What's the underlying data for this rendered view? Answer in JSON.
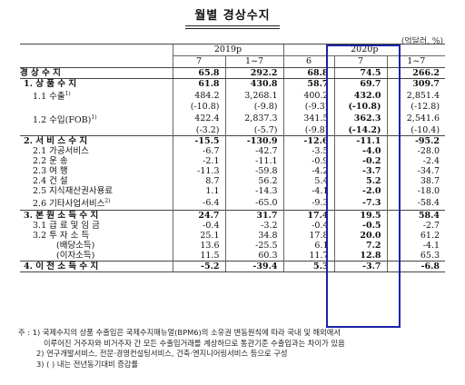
{
  "title": "월별 경상수지",
  "unit": "(억달러, %)",
  "headers": {
    "year1": "2019p",
    "year2": "2020p",
    "cols": [
      "7",
      "1~7",
      "6",
      "7",
      "1~7"
    ]
  },
  "rows": [
    {
      "label": "경 상 수 지",
      "v": [
        "65.8",
        "292.2",
        "68.8",
        "74.5",
        "266.2"
      ],
      "bold": true,
      "indent": 0
    },
    {
      "label": "1. 상 품 수 지",
      "v": [
        "61.8",
        "430.8",
        "58.7",
        "69.7",
        "309.7"
      ],
      "bold": true,
      "indent": 1
    },
    {
      "label": "1.1 수출",
      "sup": "1)",
      "v": [
        "484.2",
        "3,268.1",
        "400.2",
        "432.0",
        "2,851.4"
      ],
      "bold": false,
      "indent": 2
    },
    {
      "label": "",
      "v": [
        "(-10.8)",
        "(-9.8)",
        "(-9.3)",
        "(-10.8)",
        "(-12.8)"
      ],
      "bold": false,
      "indent": 2,
      "paren": true
    },
    {
      "label": "1.2 수입(FOB)",
      "sup": "1)",
      "v": [
        "422.4",
        "2,837.3",
        "341.5",
        "362.3",
        "2,541.6"
      ],
      "bold": false,
      "indent": 2
    },
    {
      "label": "",
      "v": [
        "(-3.2)",
        "(-5.7)",
        "(-9.8)",
        "(-14.2)",
        "(-10.4)"
      ],
      "bold": false,
      "indent": 2,
      "paren": true
    },
    {
      "label": "2. 서 비 스 수 지",
      "v": [
        "-15.5",
        "-130.9",
        "-12.6",
        "-11.1",
        "-95.2"
      ],
      "bold": true,
      "indent": 1
    },
    {
      "label": "2.1 가공서비스",
      "v": [
        "-6.7",
        "-42.7",
        "-3.5",
        "-4.0",
        "-28.0"
      ],
      "bold": false,
      "indent": 2
    },
    {
      "label": "2.2 운 송",
      "v": [
        "-2.1",
        "-11.1",
        "-0.9",
        "-0.2",
        "-2.4"
      ],
      "bold": false,
      "indent": 2
    },
    {
      "label": "2.3 여 행",
      "v": [
        "-11.3",
        "-59.8",
        "-4.2",
        "-3.7",
        "-34.7"
      ],
      "bold": false,
      "indent": 2
    },
    {
      "label": "2.4 건 설",
      "v": [
        "8.7",
        "56.2",
        "5.4",
        "5.2",
        "38.7"
      ],
      "bold": false,
      "indent": 2
    },
    {
      "label": "2.5 지식재산권사용료",
      "v": [
        "1.1",
        "-14.3",
        "-4.1",
        "-2.0",
        "-18.0"
      ],
      "bold": false,
      "indent": 2
    },
    {
      "label": "2.6 기타사업서비스",
      "sup": "2)",
      "v": [
        "-6.4",
        "-65.0",
        "-9.3",
        "-7.3",
        "-58.4"
      ],
      "bold": false,
      "indent": 2
    },
    {
      "label": "3. 본 원 소 득 수 지",
      "v": [
        "24.7",
        "31.7",
        "17.4",
        "19.5",
        "58.4"
      ],
      "bold": true,
      "indent": 1
    },
    {
      "label": "3.1 급 료 및 임 금",
      "v": [
        "-0.4",
        "-3.2",
        "-0.4",
        "-0.5",
        "-2.7"
      ],
      "bold": false,
      "indent": 2
    },
    {
      "label": "3.2 투 자 소 득",
      "v": [
        "25.1",
        "34.8",
        "17.8",
        "20.0",
        "61.2"
      ],
      "bold": false,
      "indent": 2
    },
    {
      "label": "(배당소득)",
      "v": [
        "13.6",
        "-25.5",
        "6.1",
        "7.2",
        "-4.1"
      ],
      "bold": false,
      "indent": 3
    },
    {
      "label": "(이자소득)",
      "v": [
        "11.5",
        "60.3",
        "11.7",
        "12.8",
        "65.3"
      ],
      "bold": false,
      "indent": 3
    },
    {
      "label": "4. 이 전 소 득 수 지",
      "v": [
        "-5.2",
        "-39.4",
        "5.3",
        "-3.7",
        "-6.8"
      ],
      "bold": true,
      "indent": 1
    }
  ],
  "notes": [
    "주 : 1) 국제수지의 상품 수출입은 국제수지매뉴얼(BPM6)의 소유권 변동원칙에 따라 국내 및 해외에서",
    "이루어진 거주자와 비거주자 간 모든 수출입거래를 계상하므로 통관기준 수출입과는 차이가 있음",
    "2) 연구개발서비스, 전문·경영컨설팅서비스, 건축·엔지니어링서비스 등으로 구성",
    "3) ( ) 내는 전년동기대비 증감률"
  ]
}
